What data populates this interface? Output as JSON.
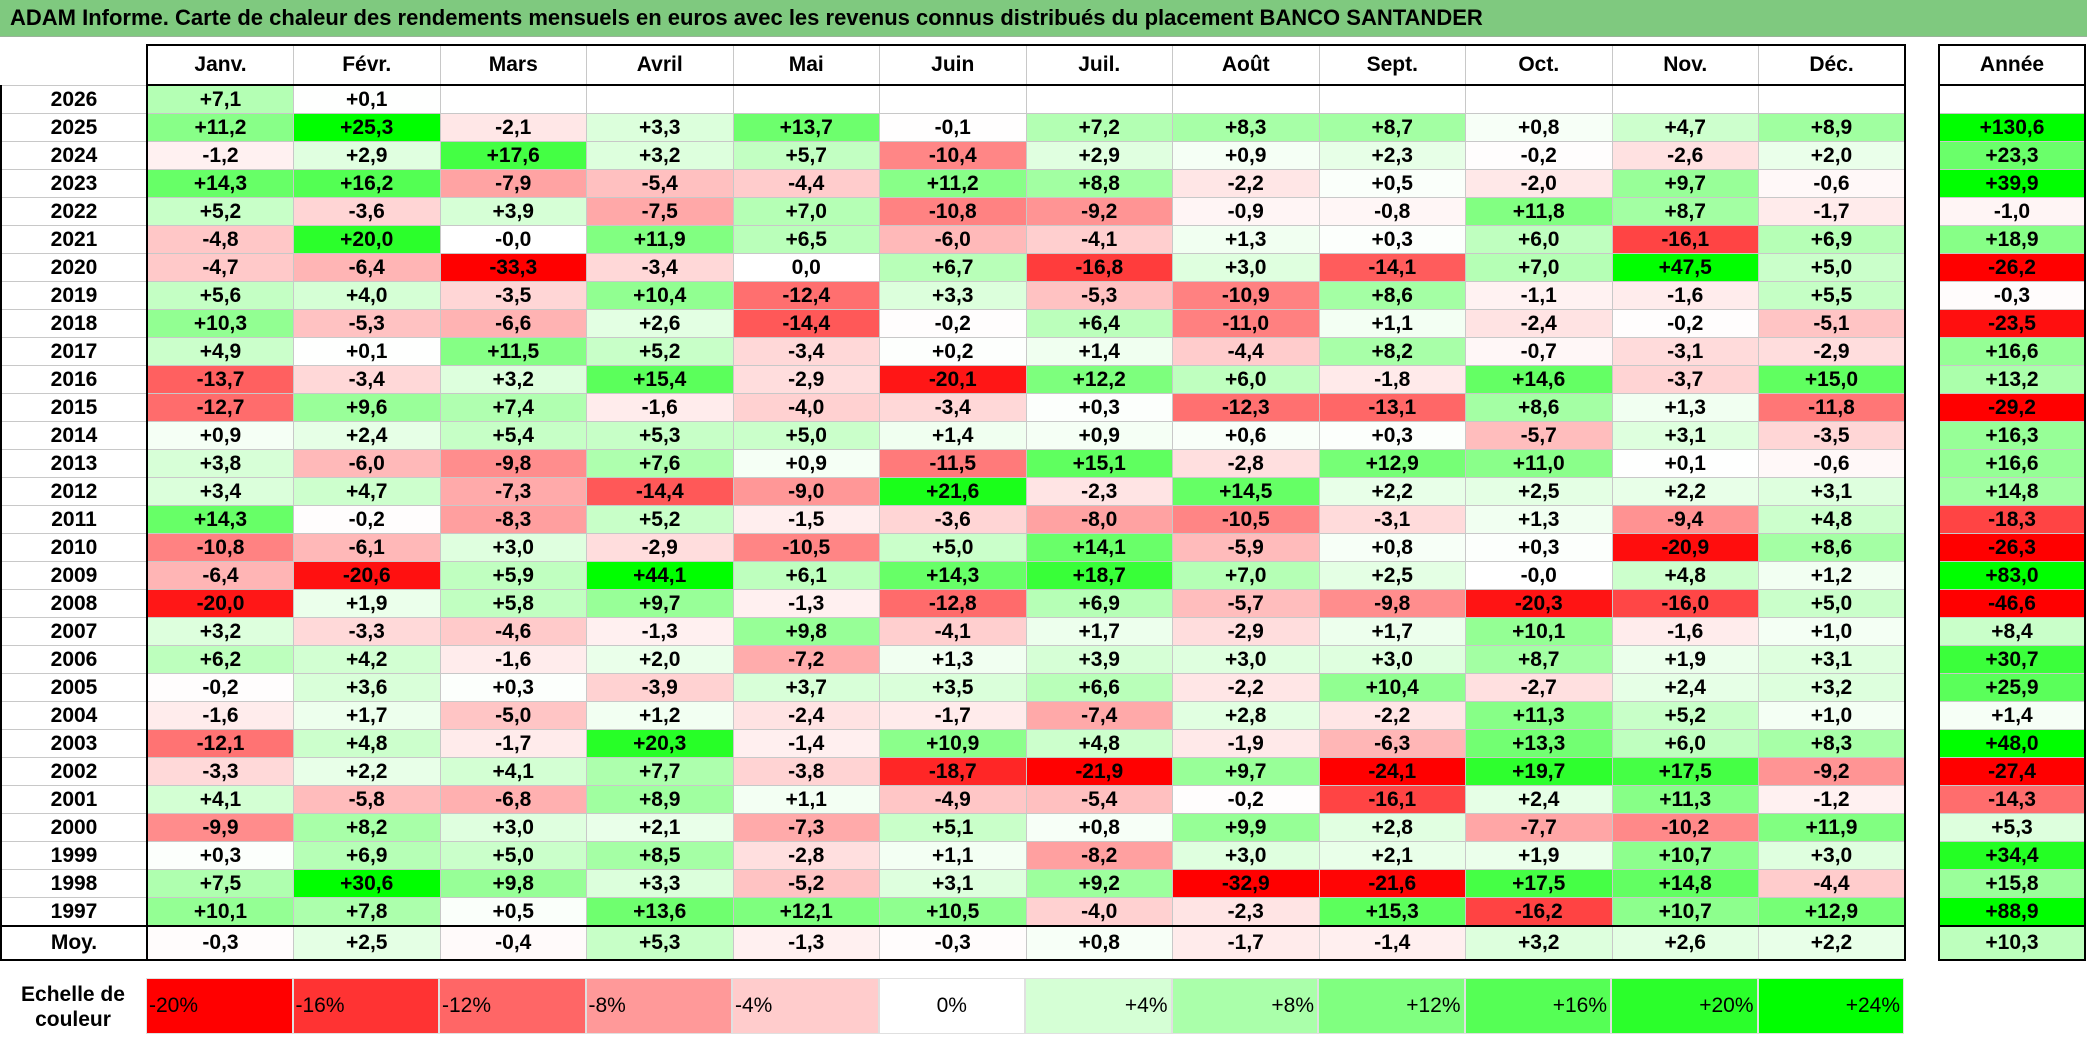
{
  "title": "ADAM Informe. Carte de chaleur des rendements mensuels en euros avec les revenus connus distribués du placement BANCO SANTANDER",
  "chart_data": {
    "type": "heatmap",
    "columns": [
      "Janv.",
      "Févr.",
      "Mars",
      "Avril",
      "Mai",
      "Juin",
      "Juil.",
      "Août",
      "Sept.",
      "Oct.",
      "Nov.",
      "Déc."
    ],
    "annual_header": "Année",
    "rows": [
      {
        "year": "2026",
        "values": [
          "+7,1",
          "+0,1",
          "",
          "",
          "",
          "",
          "",
          "",
          "",
          "",
          "",
          ""
        ],
        "annual": ""
      },
      {
        "year": "2025",
        "values": [
          "+11,2",
          "+25,3",
          "-2,1",
          "+3,3",
          "+13,7",
          "-0,1",
          "+7,2",
          "+8,3",
          "+8,7",
          "+0,8",
          "+4,7",
          "+8,9"
        ],
        "annual": "+130,6"
      },
      {
        "year": "2024",
        "values": [
          "-1,2",
          "+2,9",
          "+17,6",
          "+3,2",
          "+5,7",
          "-10,4",
          "+2,9",
          "+0,9",
          "+2,3",
          "-0,2",
          "-2,6",
          "+2,0"
        ],
        "annual": "+23,3"
      },
      {
        "year": "2023",
        "values": [
          "+14,3",
          "+16,2",
          "-7,9",
          "-5,4",
          "-4,4",
          "+11,2",
          "+8,8",
          "-2,2",
          "+0,5",
          "-2,0",
          "+9,7",
          "-0,6"
        ],
        "annual": "+39,9"
      },
      {
        "year": "2022",
        "values": [
          "+5,2",
          "-3,6",
          "+3,9",
          "-7,5",
          "+7,0",
          "-10,8",
          "-9,2",
          "-0,9",
          "-0,8",
          "+11,8",
          "+8,7",
          "-1,7"
        ],
        "annual": "-1,0"
      },
      {
        "year": "2021",
        "values": [
          "-4,8",
          "+20,0",
          "-0,0",
          "+11,9",
          "+6,5",
          "-6,0",
          "-4,1",
          "+1,3",
          "+0,3",
          "+6,0",
          "-16,1",
          "+6,9"
        ],
        "annual": "+18,9"
      },
      {
        "year": "2020",
        "values": [
          "-4,7",
          "-6,4",
          "-33,3",
          "-3,4",
          "0,0",
          "+6,7",
          "-16,8",
          "+3,0",
          "-14,1",
          "+7,0",
          "+47,5",
          "+5,0"
        ],
        "annual": "-26,2"
      },
      {
        "year": "2019",
        "values": [
          "+5,6",
          "+4,0",
          "-3,5",
          "+10,4",
          "-12,4",
          "+3,3",
          "-5,3",
          "-10,9",
          "+8,6",
          "-1,1",
          "-1,6",
          "+5,5"
        ],
        "annual": "-0,3"
      },
      {
        "year": "2018",
        "values": [
          "+10,3",
          "-5,3",
          "-6,6",
          "+2,6",
          "-14,4",
          "-0,2",
          "+6,4",
          "-11,0",
          "+1,1",
          "-2,4",
          "-0,2",
          "-5,1"
        ],
        "annual": "-23,5"
      },
      {
        "year": "2017",
        "values": [
          "+4,9",
          "+0,1",
          "+11,5",
          "+5,2",
          "-3,4",
          "+0,2",
          "+1,4",
          "-4,4",
          "+8,2",
          "-0,7",
          "-3,1",
          "-2,9"
        ],
        "annual": "+16,6"
      },
      {
        "year": "2016",
        "values": [
          "-13,7",
          "-3,4",
          "+3,2",
          "+15,4",
          "-2,9",
          "-20,1",
          "+12,2",
          "+6,0",
          "-1,8",
          "+14,6",
          "-3,7",
          "+15,0"
        ],
        "annual": "+13,2"
      },
      {
        "year": "2015",
        "values": [
          "-12,7",
          "+9,6",
          "+7,4",
          "-1,6",
          "-4,0",
          "-3,4",
          "+0,3",
          "-12,3",
          "-13,1",
          "+8,6",
          "+1,3",
          "-11,8"
        ],
        "annual": "-29,2"
      },
      {
        "year": "2014",
        "values": [
          "+0,9",
          "+2,4",
          "+5,4",
          "+5,3",
          "+5,0",
          "+1,4",
          "+0,9",
          "+0,6",
          "+0,3",
          "-5,7",
          "+3,1",
          "-3,5"
        ],
        "annual": "+16,3"
      },
      {
        "year": "2013",
        "values": [
          "+3,8",
          "-6,0",
          "-9,8",
          "+7,6",
          "+0,9",
          "-11,5",
          "+15,1",
          "-2,8",
          "+12,9",
          "+11,0",
          "+0,1",
          "-0,6"
        ],
        "annual": "+16,6"
      },
      {
        "year": "2012",
        "values": [
          "+3,4",
          "+4,7",
          "-7,3",
          "-14,4",
          "-9,0",
          "+21,6",
          "-2,3",
          "+14,5",
          "+2,2",
          "+2,5",
          "+2,2",
          "+3,1"
        ],
        "annual": "+14,8"
      },
      {
        "year": "2011",
        "values": [
          "+14,3",
          "-0,2",
          "-8,3",
          "+5,2",
          "-1,5",
          "-3,6",
          "-8,0",
          "-10,5",
          "-3,1",
          "+1,3",
          "-9,4",
          "+4,8"
        ],
        "annual": "-18,3"
      },
      {
        "year": "2010",
        "values": [
          "-10,8",
          "-6,1",
          "+3,0",
          "-2,9",
          "-10,5",
          "+5,0",
          "+14,1",
          "-5,9",
          "+0,8",
          "+0,3",
          "-20,9",
          "+8,6"
        ],
        "annual": "-26,3"
      },
      {
        "year": "2009",
        "values": [
          "-6,4",
          "-20,6",
          "+5,9",
          "+44,1",
          "+6,1",
          "+14,3",
          "+18,7",
          "+7,0",
          "+2,5",
          "-0,0",
          "+4,8",
          "+1,2"
        ],
        "annual": "+83,0"
      },
      {
        "year": "2008",
        "values": [
          "-20,0",
          "+1,9",
          "+5,8",
          "+9,7",
          "-1,3",
          "-12,8",
          "+6,9",
          "-5,7",
          "-9,8",
          "-20,3",
          "-16,0",
          "+5,0"
        ],
        "annual": "-46,6"
      },
      {
        "year": "2007",
        "values": [
          "+3,2",
          "-3,3",
          "-4,6",
          "-1,3",
          "+9,8",
          "-4,1",
          "+1,7",
          "-2,9",
          "+1,7",
          "+10,1",
          "-1,6",
          "+1,0"
        ],
        "annual": "+8,4"
      },
      {
        "year": "2006",
        "values": [
          "+6,2",
          "+4,2",
          "-1,6",
          "+2,0",
          "-7,2",
          "+1,3",
          "+3,9",
          "+3,0",
          "+3,0",
          "+8,7",
          "+1,9",
          "+3,1"
        ],
        "annual": "+30,7"
      },
      {
        "year": "2005",
        "values": [
          "-0,2",
          "+3,6",
          "+0,3",
          "-3,9",
          "+3,7",
          "+3,5",
          "+6,6",
          "-2,2",
          "+10,4",
          "-2,7",
          "+2,4",
          "+3,2"
        ],
        "annual": "+25,9"
      },
      {
        "year": "2004",
        "values": [
          "-1,6",
          "+1,7",
          "-5,0",
          "+1,2",
          "-2,4",
          "-1,7",
          "-7,4",
          "+2,8",
          "-2,2",
          "+11,3",
          "+5,2",
          "+1,0"
        ],
        "annual": "+1,4"
      },
      {
        "year": "2003",
        "values": [
          "-12,1",
          "+4,8",
          "-1,7",
          "+20,3",
          "-1,4",
          "+10,9",
          "+4,8",
          "-1,9",
          "-6,3",
          "+13,3",
          "+6,0",
          "+8,3"
        ],
        "annual": "+48,0"
      },
      {
        "year": "2002",
        "values": [
          "-3,3",
          "+2,2",
          "+4,1",
          "+7,7",
          "-3,8",
          "-18,7",
          "-21,9",
          "+9,7",
          "-24,1",
          "+19,7",
          "+17,5",
          "-9,2"
        ],
        "annual": "-27,4"
      },
      {
        "year": "2001",
        "values": [
          "+4,1",
          "-5,8",
          "-6,8",
          "+8,9",
          "+1,1",
          "-4,9",
          "-5,4",
          "-0,2",
          "-16,1",
          "+2,4",
          "+11,3",
          "-1,2"
        ],
        "annual": "-14,3"
      },
      {
        "year": "2000",
        "values": [
          "-9,9",
          "+8,2",
          "+3,0",
          "+2,1",
          "-7,3",
          "+5,1",
          "+0,8",
          "+9,9",
          "+2,8",
          "-7,7",
          "-10,2",
          "+11,9"
        ],
        "annual": "+5,3"
      },
      {
        "year": "1999",
        "values": [
          "+0,3",
          "+6,9",
          "+5,0",
          "+8,5",
          "-2,8",
          "+1,1",
          "-8,2",
          "+3,0",
          "+2,1",
          "+1,9",
          "+10,7",
          "+3,0"
        ],
        "annual": "+34,4"
      },
      {
        "year": "1998",
        "values": [
          "+7,5",
          "+30,6",
          "+9,8",
          "+3,3",
          "-5,2",
          "+3,1",
          "+9,2",
          "-32,9",
          "-21,6",
          "+17,5",
          "+14,8",
          "-4,4"
        ],
        "annual": "+15,8"
      },
      {
        "year": "1997",
        "values": [
          "+10,1",
          "+7,8",
          "+0,5",
          "+13,6",
          "+12,1",
          "+10,5",
          "-4,0",
          "-2,3",
          "+15,3",
          "-16,2",
          "+10,7",
          "+12,9"
        ],
        "annual": "+88,9"
      }
    ],
    "average": {
      "label": "Moy.",
      "values": [
        "-0,3",
        "+2,5",
        "-0,4",
        "+5,3",
        "-1,3",
        "-0,3",
        "+0,8",
        "-1,7",
        "-1,4",
        "+3,2",
        "+2,6",
        "+2,2"
      ],
      "annual": "+10,3"
    },
    "scale": {
      "label": "Echelle de couleur",
      "steps": [
        "-20%",
        "-16%",
        "-12%",
        "-8%",
        "-4%",
        "0%",
        "+4%",
        "+8%",
        "+12%",
        "+16%",
        "+20%",
        "+24%"
      ]
    },
    "colors": {
      "negative_max": "#ff0000",
      "neutral": "#ffffff",
      "positive_max": "#00ff00"
    }
  }
}
